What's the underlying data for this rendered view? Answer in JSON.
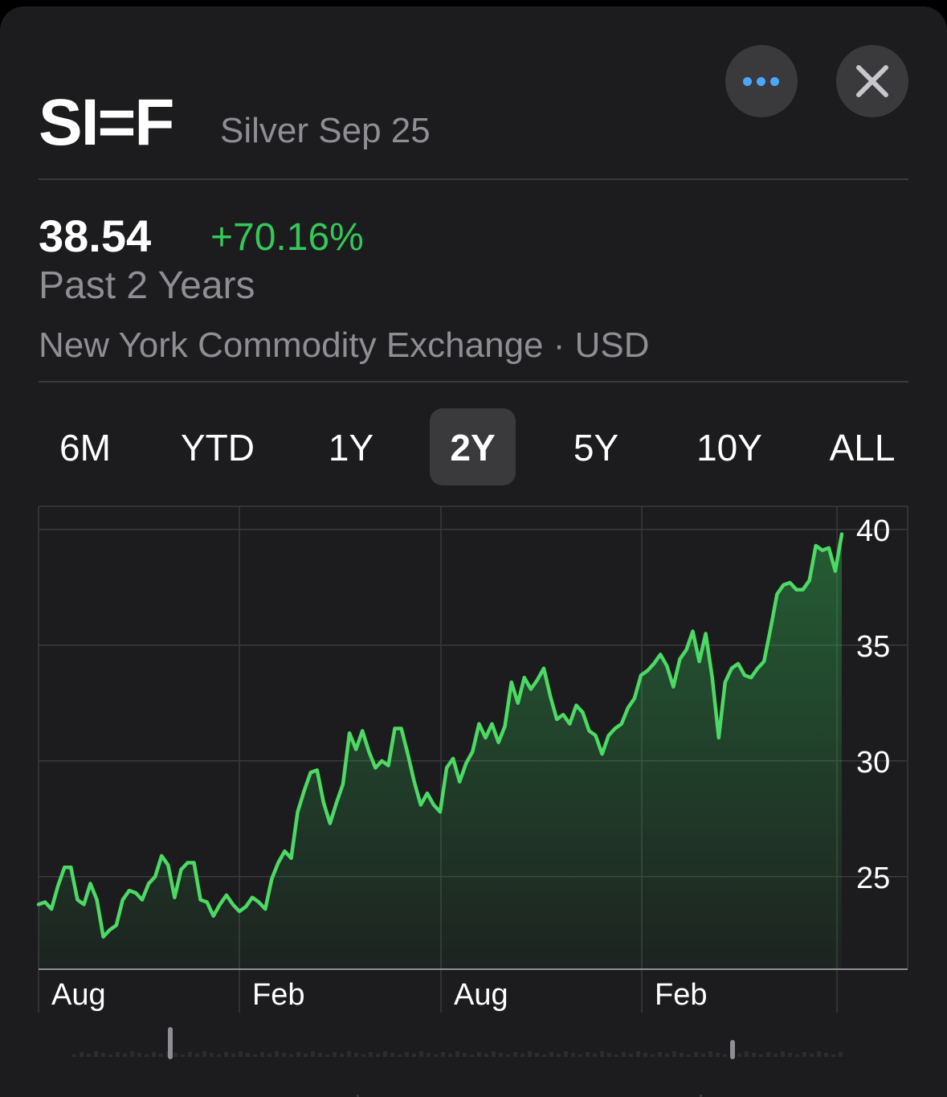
{
  "header": {
    "symbol": "SI=F",
    "name": "Silver Sep 25",
    "more_icon": "ellipsis-icon",
    "close_icon": "close-icon",
    "accent_color": "#4aa7ff"
  },
  "quote": {
    "price": "38.54",
    "change": "+70.16%",
    "period": "Past 2 Years",
    "exchange": "New York Commodity Exchange · USD",
    "change_color": "#34c759"
  },
  "tabs": [
    {
      "label": "6M"
    },
    {
      "label": "YTD"
    },
    {
      "label": "1Y"
    },
    {
      "label": "2Y",
      "active": true
    },
    {
      "label": "5Y"
    },
    {
      "label": "10Y"
    },
    {
      "label": "ALL"
    }
  ],
  "chart_data": {
    "type": "area",
    "x_tick_labels": [
      "Aug",
      "Feb",
      "Aug",
      "Feb"
    ],
    "y_ticks": [
      40,
      35,
      30,
      25
    ],
    "ylim": [
      21,
      41
    ],
    "grid": true,
    "line_color": "#4cd964",
    "series": [
      {
        "values": [
          23.8,
          23.9,
          23.6,
          24.6,
          25.4,
          25.4,
          24,
          23.8,
          24.7,
          24,
          22.4,
          22.7,
          22.9,
          24,
          24.4,
          24.3,
          24,
          24.7,
          25,
          25.9,
          25.5,
          24.1,
          25.3,
          25.6,
          25.6,
          24,
          23.9,
          23.3,
          23.8,
          24.2,
          23.8,
          23.5,
          23.7,
          24.1,
          23.9,
          23.6,
          24.9,
          25.6,
          26.1,
          25.8,
          27.8,
          28.7,
          29.5,
          29.6,
          28.2,
          27.3,
          28.2,
          29,
          31.2,
          30.5,
          31.3,
          30.4,
          29.7,
          30,
          29.8,
          31.4,
          31.4,
          30.3,
          29.1,
          28.1,
          28.6,
          28.1,
          27.8,
          29.7,
          30.1,
          29.1,
          29.9,
          30.4,
          31.6,
          31,
          31.6,
          30.8,
          31.5,
          33.4,
          32.5,
          33.6,
          33.1,
          33.5,
          34,
          32.8,
          31.8,
          32,
          31.6,
          32.4,
          32.1,
          31.3,
          31.1,
          30.3,
          31.1,
          31.4,
          31.6,
          32.3,
          32.7,
          33.7,
          33.9,
          34.2,
          34.6,
          34.1,
          33.2,
          34.4,
          34.8,
          35.6,
          34.3,
          35.5,
          33.6,
          31,
          33.4,
          34,
          34.2,
          33.7,
          33.6,
          34,
          34.3,
          35.7,
          37.2,
          37.6,
          37.7,
          37.4,
          37.4,
          37.8,
          39.3,
          39.1,
          39.2,
          38.2,
          39.8
        ]
      }
    ]
  }
}
